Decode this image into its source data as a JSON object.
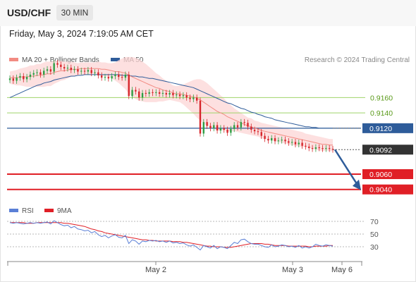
{
  "header": {
    "symbol": "USD/CHF",
    "timeframe": "30 MIN",
    "datetime": "Friday, May 3, 2024 7:19:05 AM CET"
  },
  "credit": "Research © 2024 Trading Central",
  "legend": {
    "ma20": {
      "label": "MA 20 + Bollinger Bands",
      "color": "#f28b82"
    },
    "ma50": {
      "label": "MA 50",
      "color": "#2e5c9a"
    }
  },
  "rsi_legend": {
    "rsi": {
      "label": "RSI",
      "color": "#5a7fd6"
    },
    "ma9": {
      "label": "9MA",
      "color": "#e01f26"
    }
  },
  "colors": {
    "bull": "#2e9e44",
    "bear": "#d7262b",
    "support": "#e01f26",
    "pivot": "#2e5c9a",
    "resistance": "#9fd46a",
    "current_price": "#333333",
    "arrow": "#2e5c9a"
  },
  "chart_data": {
    "type": "candlestick",
    "x_ticks": [
      "May 2",
      "May 3",
      "May 6"
    ],
    "y_range": [
      0.9025,
      0.92
    ],
    "levels": [
      {
        "label": "0.9160",
        "value": 0.916,
        "kind": "resistance"
      },
      {
        "label": "0.9140",
        "value": 0.914,
        "kind": "resistance"
      },
      {
        "label": "0.9120",
        "value": 0.912,
        "kind": "pivot"
      },
      {
        "label": "0.9092",
        "value": 0.9092,
        "kind": "current"
      },
      {
        "label": "0.9060",
        "value": 0.906,
        "kind": "support"
      },
      {
        "label": "0.9040",
        "value": 0.904,
        "kind": "support"
      }
    ],
    "close": [
      0.9185,
      0.9182,
      0.9186,
      0.9188,
      0.9184,
      0.9187,
      0.919,
      0.9192,
      0.9193,
      0.919,
      0.9195,
      0.9197,
      0.9194,
      0.9205,
      0.9203,
      0.92,
      0.9198,
      0.9199,
      0.9196,
      0.9197,
      0.9194,
      0.9195,
      0.9194,
      0.9196,
      0.9192,
      0.9193,
      0.9189,
      0.9186,
      0.9187,
      0.9185,
      0.9188,
      0.919,
      0.9187,
      0.9186,
      0.919,
      0.9162,
      0.917,
      0.9168,
      0.916,
      0.9166,
      0.9165,
      0.9167,
      0.9166,
      0.9167,
      0.9165,
      0.9166,
      0.9164,
      0.9166,
      0.9163,
      0.9164,
      0.9162,
      0.9163,
      0.916,
      0.9158,
      0.916,
      0.9156,
      0.9113,
      0.9128,
      0.9123,
      0.912,
      0.9124,
      0.9117,
      0.912,
      0.9118,
      0.9114,
      0.9119,
      0.9124,
      0.9121,
      0.9128,
      0.9127,
      0.9122,
      0.9118,
      0.9116,
      0.9115,
      0.911,
      0.9106,
      0.9104,
      0.9107,
      0.9103,
      0.9104,
      0.9105,
      0.9103,
      0.9101,
      0.9102,
      0.9099,
      0.9101,
      0.9097,
      0.9096,
      0.9094,
      0.9093,
      0.9095,
      0.9094,
      0.9093,
      0.9094,
      0.9093,
      0.9092
    ],
    "ma20": [
      0.9186,
      0.9186,
      0.9186,
      0.9187,
      0.9187,
      0.9187,
      0.9188,
      0.9188,
      0.9189,
      0.9189,
      0.919,
      0.9191,
      0.9191,
      0.9193,
      0.9194,
      0.9195,
      0.9195,
      0.9196,
      0.9197,
      0.9197,
      0.9197,
      0.9198,
      0.9198,
      0.9198,
      0.9198,
      0.9198,
      0.9198,
      0.9197,
      0.9197,
      0.9196,
      0.9195,
      0.9194,
      0.9194,
      0.9193,
      0.9192,
      0.9189,
      0.9187,
      0.9185,
      0.9183,
      0.9181,
      0.9179,
      0.9177,
      0.9175,
      0.9173,
      0.9172,
      0.917,
      0.9169,
      0.9168,
      0.9166,
      0.9165,
      0.9165,
      0.9164,
      0.9163,
      0.9162,
      0.9161,
      0.9159,
      0.9157,
      0.9154,
      0.9151,
      0.9148,
      0.9145,
      0.9142,
      0.914,
      0.9138,
      0.9135,
      0.9133,
      0.9131,
      0.9129,
      0.9127,
      0.9125,
      0.9123,
      0.9122,
      0.912,
      0.9119,
      0.9117,
      0.9116,
      0.9115,
      0.9114,
      0.9113,
      0.9112,
      0.9111,
      0.911,
      0.9109,
      0.9108,
      0.9107,
      0.9106,
      0.9105,
      0.9104,
      0.9103,
      0.9102,
      0.9101,
      0.91,
      0.9099,
      0.9099,
      0.9098,
      0.9098
    ],
    "ma50": [
      0.916,
      0.9162,
      0.9164,
      0.9166,
      0.9168,
      0.917,
      0.9172,
      0.9174,
      0.9176,
      0.9177,
      0.9179,
      0.918,
      0.9181,
      0.9183,
      0.9184,
      0.9185,
      0.9186,
      0.9187,
      0.9188,
      0.9188,
      0.9189,
      0.9189,
      0.919,
      0.919,
      0.919,
      0.919,
      0.919,
      0.919,
      0.919,
      0.919,
      0.919,
      0.919,
      0.919,
      0.9189,
      0.9189,
      0.9189,
      0.9188,
      0.9188,
      0.9187,
      0.9187,
      0.9186,
      0.9185,
      0.9185,
      0.9184,
      0.9183,
      0.9182,
      0.9181,
      0.918,
      0.9179,
      0.9178,
      0.9177,
      0.9176,
      0.9175,
      0.9174,
      0.9173,
      0.9171,
      0.9169,
      0.9167,
      0.9165,
      0.9163,
      0.9161,
      0.9159,
      0.9157,
      0.9155,
      0.9153,
      0.9152,
      0.915,
      0.9148,
      0.9146,
      0.9145,
      0.9143,
      0.9141,
      0.914,
      0.9138,
      0.9137,
      0.9135,
      0.9134,
      0.9133,
      0.9131,
      0.913,
      0.9129,
      0.9128,
      0.9127,
      0.9126,
      0.9125,
      0.9124,
      0.9123,
      0.9122,
      0.9122,
      0.9121,
      0.9121,
      0.912,
      0.912,
      0.912,
      0.912,
      0.912
    ],
    "band_width": [
      0.0008,
      0.0009,
      0.001,
      0.0011,
      0.0012,
      0.0013,
      0.0014,
      0.0014,
      0.0015,
      0.0015,
      0.0016,
      0.0016,
      0.0016,
      0.0015,
      0.0014,
      0.0013,
      0.0012,
      0.0011,
      0.001,
      0.0009,
      0.0008,
      0.0008,
      0.0008,
      0.0008,
      0.0008,
      0.0008,
      0.0009,
      0.0009,
      0.0009,
      0.0009,
      0.001,
      0.0012,
      0.0015,
      0.0018,
      0.0021,
      0.0024,
      0.0026,
      0.0027,
      0.0027,
      0.0026,
      0.0025,
      0.0023,
      0.0021,
      0.0019,
      0.0017,
      0.0015,
      0.0013,
      0.0011,
      0.001,
      0.001,
      0.0011,
      0.0013,
      0.0016,
      0.0019,
      0.0022,
      0.0025,
      0.0027,
      0.0028,
      0.0028,
      0.0027,
      0.0026,
      0.0025,
      0.0023,
      0.0021,
      0.0019,
      0.0017,
      0.0015,
      0.0014,
      0.0013,
      0.0012,
      0.0011,
      0.0011,
      0.001,
      0.001,
      0.001,
      0.001,
      0.001,
      0.001,
      0.001,
      0.001,
      0.001,
      0.001,
      0.001,
      0.001,
      0.001,
      0.001,
      0.001,
      0.0009,
      0.0009,
      0.0009,
      0.0009,
      0.0009,
      0.0009,
      0.0008,
      0.0008,
      0.0008
    ],
    "forecast": {
      "from": 0.9092,
      "to": 0.904
    },
    "rsi": {
      "y_ticks": [
        70,
        50,
        30
      ],
      "y_range": [
        10,
        80
      ],
      "rsi": [
        68,
        67,
        68,
        67,
        66,
        67,
        68,
        67,
        68,
        67,
        68,
        69,
        66,
        71,
        68,
        65,
        63,
        64,
        60,
        62,
        58,
        57,
        55,
        56,
        52,
        54,
        49,
        46,
        48,
        44,
        47,
        49,
        45,
        44,
        48,
        35,
        41,
        39,
        34,
        39,
        38,
        40,
        39,
        40,
        38,
        39,
        37,
        39,
        36,
        37,
        35,
        36,
        33,
        31,
        33,
        29,
        25,
        32,
        30,
        28,
        32,
        27,
        30,
        29,
        27,
        32,
        37,
        35,
        41,
        42,
        38,
        35,
        34,
        34,
        32,
        30,
        29,
        33,
        30,
        31,
        33,
        32,
        30,
        31,
        29,
        32,
        28,
        30,
        28,
        30,
        34,
        32,
        31,
        33,
        32,
        31
      ],
      "ma9": [
        68,
        68,
        68,
        68,
        68,
        67,
        67,
        67,
        68,
        68,
        68,
        68,
        68,
        68,
        68,
        68,
        67,
        67,
        66,
        65,
        64,
        63,
        62,
        60,
        58,
        57,
        55,
        54,
        52,
        51,
        50,
        49,
        48,
        47,
        46,
        45,
        44,
        43,
        42,
        41,
        41,
        40,
        40,
        39,
        39,
        39,
        39,
        39,
        38,
        38,
        38,
        37,
        37,
        36,
        35,
        34,
        33,
        32,
        31,
        31,
        30,
        30,
        30,
        29,
        29,
        29,
        30,
        31,
        32,
        33,
        34,
        35,
        35,
        35,
        35,
        34,
        34,
        33,
        32,
        32,
        32,
        32,
        31,
        31,
        31,
        31,
        31,
        31,
        30,
        30,
        31,
        31,
        31,
        31,
        32,
        32
      ]
    }
  }
}
